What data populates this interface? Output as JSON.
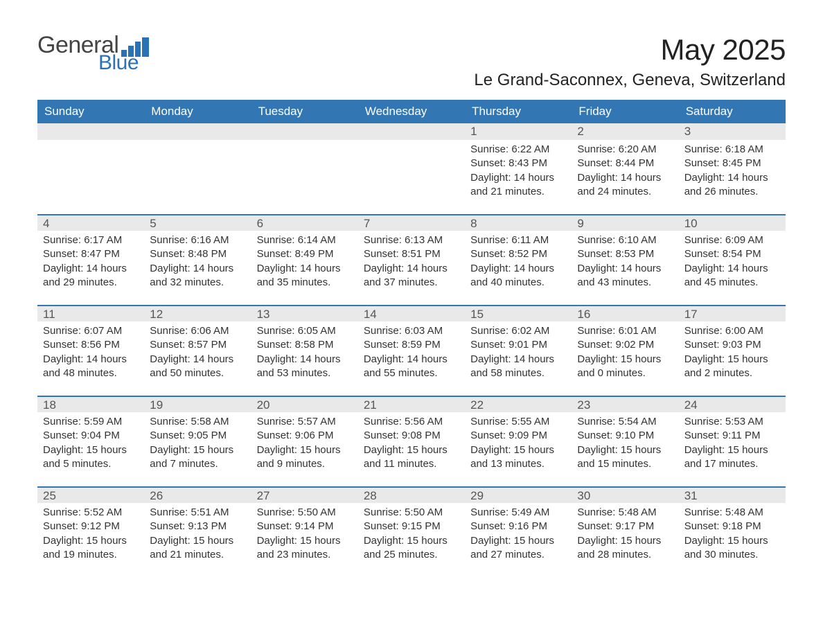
{
  "brand": {
    "name_part1": "General",
    "name_part2": "Blue",
    "bar_color": "#2a72b5",
    "text_gray": "#444444"
  },
  "header": {
    "title": "May 2025",
    "location": "Le Grand-Saconnex, Geneva, Switzerland"
  },
  "style": {
    "header_bg": "#3277b3",
    "header_text": "#ffffff",
    "daynum_bg": "#e9e9e9",
    "rule_color": "#3277b3",
    "body_bg": "#ffffff",
    "body_text": "#333333",
    "title_fontsize_pt": 32,
    "location_fontsize_pt": 18,
    "header_fontsize_pt": 13,
    "cell_fontsize_pt": 11
  },
  "calendar": {
    "columns": [
      "Sunday",
      "Monday",
      "Tuesday",
      "Wednesday",
      "Thursday",
      "Friday",
      "Saturday"
    ],
    "weeks": [
      [
        null,
        null,
        null,
        null,
        {
          "n": "1",
          "sr": "Sunrise: 6:22 AM",
          "ss": "Sunset: 8:43 PM",
          "dl": "Daylight: 14 hours and 21 minutes."
        },
        {
          "n": "2",
          "sr": "Sunrise: 6:20 AM",
          "ss": "Sunset: 8:44 PM",
          "dl": "Daylight: 14 hours and 24 minutes."
        },
        {
          "n": "3",
          "sr": "Sunrise: 6:18 AM",
          "ss": "Sunset: 8:45 PM",
          "dl": "Daylight: 14 hours and 26 minutes."
        }
      ],
      [
        {
          "n": "4",
          "sr": "Sunrise: 6:17 AM",
          "ss": "Sunset: 8:47 PM",
          "dl": "Daylight: 14 hours and 29 minutes."
        },
        {
          "n": "5",
          "sr": "Sunrise: 6:16 AM",
          "ss": "Sunset: 8:48 PM",
          "dl": "Daylight: 14 hours and 32 minutes."
        },
        {
          "n": "6",
          "sr": "Sunrise: 6:14 AM",
          "ss": "Sunset: 8:49 PM",
          "dl": "Daylight: 14 hours and 35 minutes."
        },
        {
          "n": "7",
          "sr": "Sunrise: 6:13 AM",
          "ss": "Sunset: 8:51 PM",
          "dl": "Daylight: 14 hours and 37 minutes."
        },
        {
          "n": "8",
          "sr": "Sunrise: 6:11 AM",
          "ss": "Sunset: 8:52 PM",
          "dl": "Daylight: 14 hours and 40 minutes."
        },
        {
          "n": "9",
          "sr": "Sunrise: 6:10 AM",
          "ss": "Sunset: 8:53 PM",
          "dl": "Daylight: 14 hours and 43 minutes."
        },
        {
          "n": "10",
          "sr": "Sunrise: 6:09 AM",
          "ss": "Sunset: 8:54 PM",
          "dl": "Daylight: 14 hours and 45 minutes."
        }
      ],
      [
        {
          "n": "11",
          "sr": "Sunrise: 6:07 AM",
          "ss": "Sunset: 8:56 PM",
          "dl": "Daylight: 14 hours and 48 minutes."
        },
        {
          "n": "12",
          "sr": "Sunrise: 6:06 AM",
          "ss": "Sunset: 8:57 PM",
          "dl": "Daylight: 14 hours and 50 minutes."
        },
        {
          "n": "13",
          "sr": "Sunrise: 6:05 AM",
          "ss": "Sunset: 8:58 PM",
          "dl": "Daylight: 14 hours and 53 minutes."
        },
        {
          "n": "14",
          "sr": "Sunrise: 6:03 AM",
          "ss": "Sunset: 8:59 PM",
          "dl": "Daylight: 14 hours and 55 minutes."
        },
        {
          "n": "15",
          "sr": "Sunrise: 6:02 AM",
          "ss": "Sunset: 9:01 PM",
          "dl": "Daylight: 14 hours and 58 minutes."
        },
        {
          "n": "16",
          "sr": "Sunrise: 6:01 AM",
          "ss": "Sunset: 9:02 PM",
          "dl": "Daylight: 15 hours and 0 minutes."
        },
        {
          "n": "17",
          "sr": "Sunrise: 6:00 AM",
          "ss": "Sunset: 9:03 PM",
          "dl": "Daylight: 15 hours and 2 minutes."
        }
      ],
      [
        {
          "n": "18",
          "sr": "Sunrise: 5:59 AM",
          "ss": "Sunset: 9:04 PM",
          "dl": "Daylight: 15 hours and 5 minutes."
        },
        {
          "n": "19",
          "sr": "Sunrise: 5:58 AM",
          "ss": "Sunset: 9:05 PM",
          "dl": "Daylight: 15 hours and 7 minutes."
        },
        {
          "n": "20",
          "sr": "Sunrise: 5:57 AM",
          "ss": "Sunset: 9:06 PM",
          "dl": "Daylight: 15 hours and 9 minutes."
        },
        {
          "n": "21",
          "sr": "Sunrise: 5:56 AM",
          "ss": "Sunset: 9:08 PM",
          "dl": "Daylight: 15 hours and 11 minutes."
        },
        {
          "n": "22",
          "sr": "Sunrise: 5:55 AM",
          "ss": "Sunset: 9:09 PM",
          "dl": "Daylight: 15 hours and 13 minutes."
        },
        {
          "n": "23",
          "sr": "Sunrise: 5:54 AM",
          "ss": "Sunset: 9:10 PM",
          "dl": "Daylight: 15 hours and 15 minutes."
        },
        {
          "n": "24",
          "sr": "Sunrise: 5:53 AM",
          "ss": "Sunset: 9:11 PM",
          "dl": "Daylight: 15 hours and 17 minutes."
        }
      ],
      [
        {
          "n": "25",
          "sr": "Sunrise: 5:52 AM",
          "ss": "Sunset: 9:12 PM",
          "dl": "Daylight: 15 hours and 19 minutes."
        },
        {
          "n": "26",
          "sr": "Sunrise: 5:51 AM",
          "ss": "Sunset: 9:13 PM",
          "dl": "Daylight: 15 hours and 21 minutes."
        },
        {
          "n": "27",
          "sr": "Sunrise: 5:50 AM",
          "ss": "Sunset: 9:14 PM",
          "dl": "Daylight: 15 hours and 23 minutes."
        },
        {
          "n": "28",
          "sr": "Sunrise: 5:50 AM",
          "ss": "Sunset: 9:15 PM",
          "dl": "Daylight: 15 hours and 25 minutes."
        },
        {
          "n": "29",
          "sr": "Sunrise: 5:49 AM",
          "ss": "Sunset: 9:16 PM",
          "dl": "Daylight: 15 hours and 27 minutes."
        },
        {
          "n": "30",
          "sr": "Sunrise: 5:48 AM",
          "ss": "Sunset: 9:17 PM",
          "dl": "Daylight: 15 hours and 28 minutes."
        },
        {
          "n": "31",
          "sr": "Sunrise: 5:48 AM",
          "ss": "Sunset: 9:18 PM",
          "dl": "Daylight: 15 hours and 30 minutes."
        }
      ]
    ]
  }
}
